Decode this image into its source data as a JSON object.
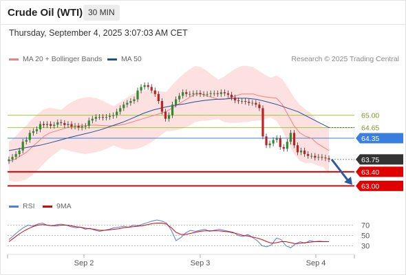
{
  "header": {
    "title": "Crude Oil (WTI)",
    "timeframe": "30 MIN",
    "datetime": "Thursday, September 4, 2025 3:07:03 AM CET"
  },
  "legend": {
    "bollinger_label": "MA 20 + Bollinger Bands",
    "ma50_label": "MA 50",
    "credit": "Research © 2025 Trading Central"
  },
  "rsi_legend": {
    "rsi_label": "RSI",
    "ma_label": "9MA"
  },
  "colors": {
    "bollinger": "#f08080",
    "ma50": "#1f4e99",
    "resistance": "#9acd32",
    "pivot": "#3a7fe0",
    "current": "#333333",
    "support": "#e00000",
    "candle_up": "#2e8b2e",
    "candle_down": "#c02020",
    "rsi": "#4a7fe0",
    "rsi_ma": "#e00000",
    "arrow": "#2b5aa0"
  },
  "levels": [
    {
      "label": "65.00",
      "value": 65.0,
      "kind": "resistance"
    },
    {
      "label": "64.65",
      "value": 64.65,
      "kind": "resistance"
    },
    {
      "label": "64.35",
      "value": 64.35,
      "kind": "pivot"
    },
    {
      "label": "63.75",
      "value": 63.75,
      "kind": "current"
    },
    {
      "label": "63.40",
      "value": 63.4,
      "kind": "support"
    },
    {
      "label": "63.00",
      "value": 63.0,
      "kind": "support"
    }
  ],
  "rsi_levels": [
    "70",
    "50",
    "30"
  ],
  "x_ticks": [
    "Sep 2",
    "Sep 3",
    "Sep 4"
  ],
  "chart_data": {
    "type": "candlestick",
    "series": [
      {
        "name": "Crude Oil (WTI)",
        "values": [
          63.75,
          63.82,
          63.9,
          64.0,
          64.25,
          64.3,
          64.5,
          64.55,
          64.6,
          64.75,
          64.72,
          64.75,
          64.7,
          64.73,
          64.8,
          64.78,
          64.72,
          64.75,
          64.68,
          64.7,
          64.65,
          64.68,
          64.7,
          64.85,
          64.9,
          64.95,
          64.95,
          64.93,
          64.95,
          64.98,
          65.0,
          65.1,
          65.2,
          65.3,
          65.35,
          65.4,
          65.45,
          65.7,
          65.8,
          65.85,
          65.8,
          65.7,
          65.6,
          65.4,
          65.1,
          64.9,
          65.0,
          65.3,
          65.45,
          65.55,
          65.65,
          65.6,
          65.6,
          65.62,
          65.63,
          65.6,
          65.6,
          65.6,
          65.62,
          65.62,
          65.6,
          65.65,
          65.62,
          65.58,
          65.5,
          65.42,
          65.4,
          65.4,
          65.38,
          65.35,
          65.35,
          65.3,
          65.2,
          64.4,
          64.15,
          64.2,
          64.3,
          64.35,
          64.1,
          64.05,
          64.25,
          64.5,
          64.15,
          63.95,
          64.0,
          63.9,
          63.85,
          63.85,
          63.8,
          63.82,
          63.8,
          63.78,
          63.75
        ]
      },
      {
        "name": "MA 20 + Bollinger Bands",
        "values": [
          63.7,
          63.75,
          63.85,
          63.95,
          64.1,
          64.25,
          64.4,
          64.5,
          64.55,
          64.6,
          64.65,
          64.68,
          64.7,
          64.7,
          64.72,
          64.72,
          64.71,
          64.7,
          64.7,
          64.72,
          64.75,
          64.8,
          64.85,
          64.9,
          64.95,
          65.0,
          65.05,
          65.1,
          65.2,
          65.3,
          65.4,
          65.5,
          65.6,
          65.6,
          65.55,
          65.5,
          65.45,
          65.45,
          65.5,
          65.55,
          65.6,
          65.6,
          65.6,
          65.55,
          65.52,
          65.5,
          65.48,
          65.3,
          65.0,
          64.7,
          64.5,
          64.4,
          64.35,
          64.2,
          64.1,
          64.0
        ]
      },
      {
        "name": "MA 50",
        "values": [
          64.0,
          64.05,
          64.1,
          64.15,
          64.22,
          64.3,
          64.38,
          64.45,
          64.52,
          64.6,
          64.7,
          64.8,
          64.92,
          65.05,
          65.15,
          65.22,
          65.28,
          65.32,
          65.38,
          65.42,
          65.45,
          65.46,
          65.48,
          65.48,
          65.45,
          65.38,
          65.3,
          65.2,
          65.1,
          64.95,
          64.8,
          64.65
        ]
      }
    ],
    "rsi": {
      "levels": [
        70,
        50,
        30
      ],
      "ylim": [
        0,
        100
      ],
      "series": [
        {
          "name": "RSI",
          "values": [
            42,
            50,
            58,
            65,
            70,
            68,
            72,
            74,
            70,
            69,
            71,
            72,
            70,
            67,
            65,
            66,
            62,
            64,
            60,
            58,
            60,
            62,
            65,
            66,
            68,
            66,
            70,
            69,
            72,
            75,
            78,
            80,
            78,
            74,
            60,
            40,
            46,
            55,
            60,
            58,
            60,
            62,
            58,
            60,
            62,
            60,
            58,
            56,
            50,
            48,
            52,
            46,
            40,
            30,
            28,
            32,
            45,
            42,
            30,
            26,
            34,
            38,
            35,
            40,
            38,
            39,
            38,
            38
          ]
        },
        {
          "name": "9MA",
          "values": [
            38,
            45,
            52,
            58,
            63,
            67,
            70,
            71,
            70,
            69,
            69,
            70,
            70,
            69,
            67,
            66,
            64,
            63,
            62,
            60,
            60,
            61,
            62,
            63,
            65,
            66,
            67,
            68,
            69,
            71,
            73,
            74,
            74,
            72,
            65,
            56,
            52,
            52,
            54,
            56,
            58,
            59,
            59,
            59,
            59,
            58,
            57,
            55,
            53,
            50,
            49,
            47,
            45,
            42,
            38,
            35,
            36,
            38,
            38,
            36,
            34,
            35,
            36,
            37,
            38,
            38,
            38,
            38
          ]
        }
      ]
    },
    "x_ticks": [
      "Sep 2",
      "Sep 3",
      "Sep 4"
    ],
    "ylim": [
      62.8,
      66.2
    ],
    "legend_position": "top-left",
    "grid": false
  }
}
